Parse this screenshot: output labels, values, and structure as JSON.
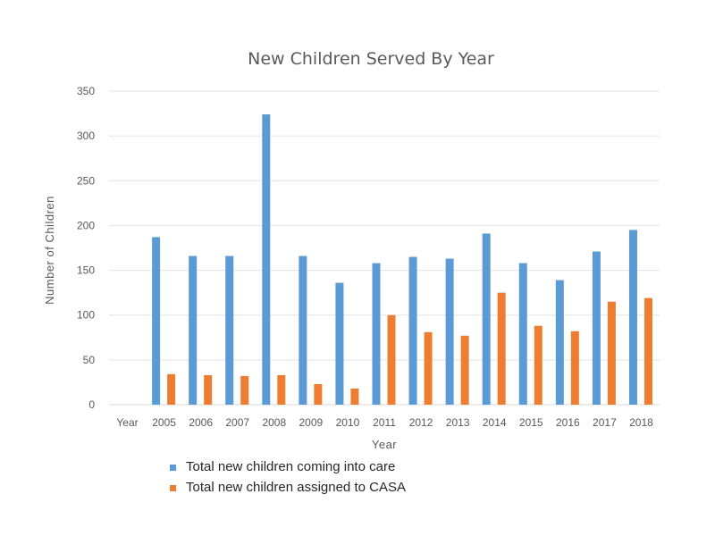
{
  "chart_data": {
    "type": "bar",
    "title": "New Children Served By Year",
    "xlabel": "Year",
    "ylabel": "Number of Children",
    "categories": [
      "Year",
      "2005",
      "2006",
      "2007",
      "2008",
      "2009",
      "2010",
      "2011",
      "2012",
      "2013",
      "2014",
      "2015",
      "2016",
      "2017",
      "2018"
    ],
    "series": [
      {
        "name": "Total new children coming into care",
        "color": "#5B9BD5",
        "values": [
          null,
          187,
          166,
          166,
          324,
          166,
          136,
          158,
          165,
          163,
          191,
          158,
          139,
          171,
          195
        ]
      },
      {
        "name": "Total new children assigned to CASA",
        "color": "#ED7D31",
        "values": [
          null,
          34,
          33,
          32,
          33,
          23,
          18,
          100,
          81,
          77,
          125,
          88,
          82,
          115,
          119
        ]
      }
    ],
    "ylim": [
      0,
      350
    ],
    "yticks": [
      0,
      50,
      100,
      150,
      200,
      250,
      300,
      350
    ],
    "grid": true,
    "legend_position": "bottom-left"
  }
}
